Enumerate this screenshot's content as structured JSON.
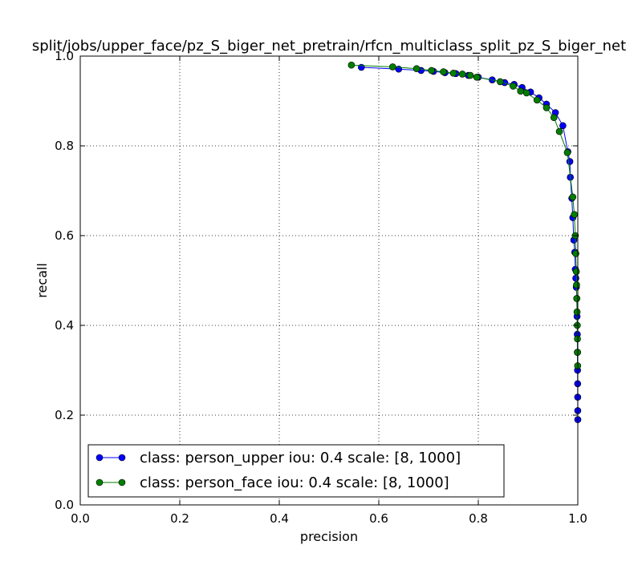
{
  "chart_data": {
    "type": "line",
    "title": "split/jobs/upper_face/pz_S_biger_net_pretrain/rfcn_multiclass_split_pz_S_biger_net",
    "xlabel": "precision",
    "ylabel": "recall",
    "xlim": [
      0.0,
      1.0
    ],
    "ylim": [
      0.0,
      1.0
    ],
    "xticks": [
      "0.0",
      "0.2",
      "0.4",
      "0.6",
      "0.8",
      "1.0"
    ],
    "yticks": [
      "0.0",
      "0.2",
      "0.4",
      "0.6",
      "0.8",
      "1.0"
    ],
    "grid": true,
    "legend_position": "lower-left",
    "series": [
      {
        "name": "class: person_upper iou: 0.4 scale: [8, 1000]",
        "color": "#0000ff",
        "marker": "circle",
        "points": [
          [
            0.565,
            0.975
          ],
          [
            0.64,
            0.971
          ],
          [
            0.685,
            0.968
          ],
          [
            0.71,
            0.966
          ],
          [
            0.733,
            0.963
          ],
          [
            0.755,
            0.961
          ],
          [
            0.78,
            0.957
          ],
          [
            0.8,
            0.953
          ],
          [
            0.828,
            0.947
          ],
          [
            0.853,
            0.941
          ],
          [
            0.872,
            0.937
          ],
          [
            0.888,
            0.93
          ],
          [
            0.905,
            0.92
          ],
          [
            0.922,
            0.907
          ],
          [
            0.937,
            0.893
          ],
          [
            0.955,
            0.874
          ],
          [
            0.97,
            0.845
          ],
          [
            0.98,
            0.787
          ],
          [
            0.984,
            0.765
          ],
          [
            0.985,
            0.73
          ],
          [
            0.988,
            0.683
          ],
          [
            0.99,
            0.64
          ],
          [
            0.992,
            0.59
          ],
          [
            0.994,
            0.563
          ],
          [
            0.995,
            0.525
          ],
          [
            0.996,
            0.505
          ],
          [
            0.997,
            0.485
          ],
          [
            0.998,
            0.46
          ],
          [
            0.9985,
            0.42
          ],
          [
            0.999,
            0.38
          ],
          [
            0.9992,
            0.34
          ],
          [
            0.9995,
            0.3
          ],
          [
            0.9997,
            0.27
          ],
          [
            0.9998,
            0.24
          ],
          [
            0.9999,
            0.21
          ],
          [
            1.0,
            0.19
          ]
        ]
      },
      {
        "name": "class: person_face iou: 0.4 scale: [8, 1000]",
        "color": "#007f00",
        "marker": "circle",
        "points": [
          [
            0.545,
            0.98
          ],
          [
            0.628,
            0.976
          ],
          [
            0.676,
            0.972
          ],
          [
            0.706,
            0.968
          ],
          [
            0.73,
            0.965
          ],
          [
            0.75,
            0.962
          ],
          [
            0.768,
            0.96
          ],
          [
            0.784,
            0.957
          ],
          [
            0.797,
            0.953
          ],
          [
            0.844,
            0.943
          ],
          [
            0.87,
            0.933
          ],
          [
            0.885,
            0.922
          ],
          [
            0.897,
            0.918
          ],
          [
            0.918,
            0.902
          ],
          [
            0.937,
            0.885
          ],
          [
            0.952,
            0.863
          ],
          [
            0.963,
            0.832
          ],
          [
            0.979,
            0.785
          ],
          [
            0.99,
            0.686
          ],
          [
            0.993,
            0.647
          ],
          [
            0.995,
            0.6
          ],
          [
            0.996,
            0.56
          ],
          [
            0.997,
            0.52
          ],
          [
            0.9975,
            0.49
          ],
          [
            0.998,
            0.46
          ],
          [
            0.9985,
            0.43
          ],
          [
            0.999,
            0.4
          ],
          [
            0.9993,
            0.37
          ],
          [
            0.9995,
            0.34
          ],
          [
            0.9997,
            0.31
          ]
        ]
      }
    ]
  }
}
